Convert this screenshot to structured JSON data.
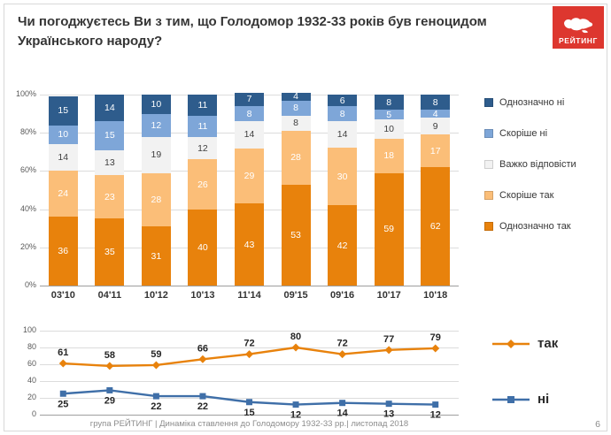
{
  "header": {
    "title": "Чи погоджуєтесь Ви з тим, що Голодомор 1932-33 років був геноцидом Українського народу?",
    "logo_text": "РЕЙТИНГ",
    "logo_color": "#dd372f"
  },
  "footer": {
    "caption": "група РЕЙТИНГ  |  Динаміка ставлення до Голодомору 1932-33 рр.|  листопад  2018",
    "page_number": "6"
  },
  "chart_data": [
    {
      "type": "bar",
      "stacked": true,
      "categories": [
        "03'10",
        "04'11",
        "10'12",
        "10'13",
        "11'14",
        "09'15",
        "09'16",
        "10'17",
        "10'18"
      ],
      "series": [
        {
          "name": "Однозначно так",
          "color": "#e8820c",
          "label_color": "#ffffff",
          "values": [
            36,
            35,
            31,
            40,
            43,
            53,
            42,
            59,
            62
          ]
        },
        {
          "name": "Скоріше так",
          "color": "#fbbe78",
          "label_color": "#ffffff",
          "values": [
            24,
            23,
            28,
            26,
            29,
            28,
            30,
            18,
            17
          ]
        },
        {
          "name": "Важко відповісти",
          "color": "#f2f2f2",
          "label_color": "#404040",
          "values": [
            14,
            13,
            19,
            12,
            14,
            8,
            14,
            10,
            9
          ]
        },
        {
          "name": "Скоріше ні",
          "color": "#7ea6d8",
          "label_color": "#ffffff",
          "values": [
            10,
            15,
            12,
            11,
            8,
            8,
            8,
            5,
            4
          ]
        },
        {
          "name": "Однозначно ні",
          "color": "#2e5c8c",
          "label_color": "#ffffff",
          "values": [
            15,
            14,
            10,
            11,
            7,
            4,
            6,
            8,
            8
          ]
        }
      ],
      "ylim": [
        0,
        100
      ],
      "yticks": [
        "100%",
        "80%",
        "60%",
        "40%",
        "20%",
        "0%"
      ],
      "grid": true,
      "legend_position": "right",
      "legend_order": [
        "Однозначно ні",
        "Скоріше ні",
        "Важко відповісти",
        "Скоріше так",
        "Однозначно так"
      ]
    },
    {
      "type": "line",
      "x": [
        "03'10",
        "04'11",
        "10'12",
        "10'13",
        "11'14",
        "09'15",
        "09'16",
        "10'17",
        "10'18"
      ],
      "series": [
        {
          "name": "так",
          "color": "#e8820c",
          "marker": "diamond",
          "values": [
            61,
            58,
            59,
            66,
            72,
            80,
            72,
            77,
            79
          ]
        },
        {
          "name": "ні",
          "color": "#3f6fa8",
          "marker": "square",
          "values": [
            25,
            29,
            22,
            22,
            15,
            12,
            14,
            13,
            12
          ]
        }
      ],
      "ylim": [
        0,
        100
      ],
      "yticks": [
        100,
        80,
        60,
        40,
        20,
        0
      ],
      "grid": true,
      "legend_position": "right"
    }
  ]
}
